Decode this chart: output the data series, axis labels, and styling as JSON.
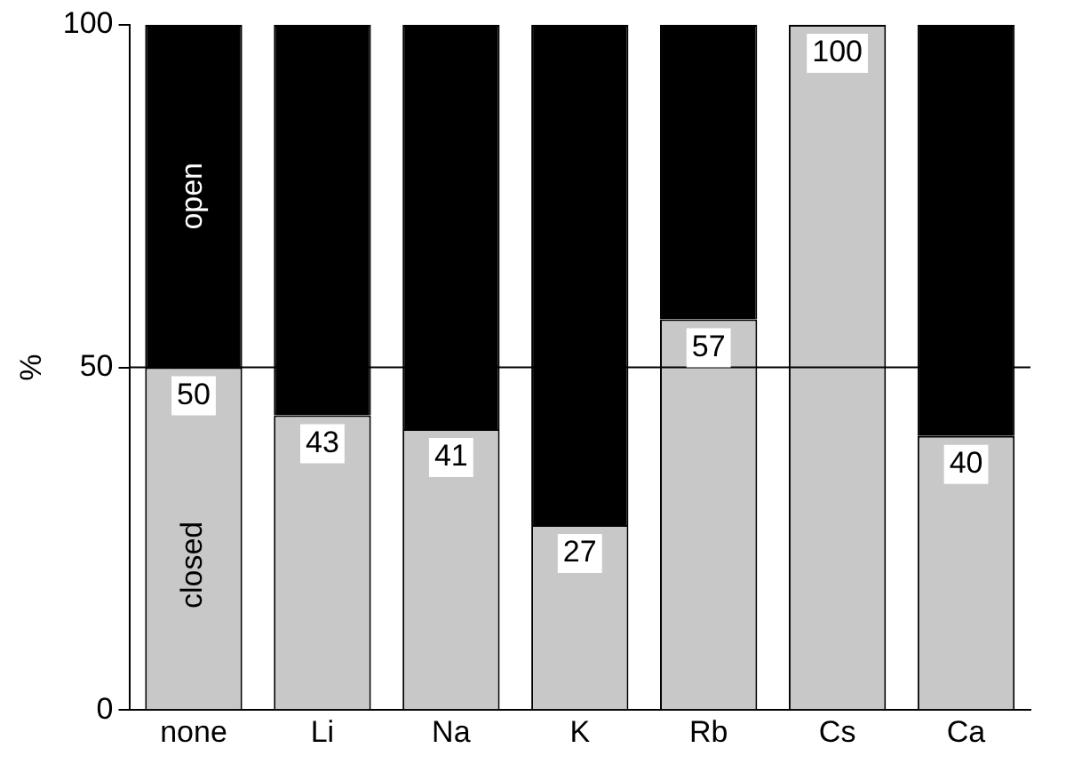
{
  "chart_data": {
    "type": "bar",
    "ylabel": "%",
    "categories": [
      "none",
      "Li",
      "Na",
      "K",
      "Rb",
      "Cs",
      "Ca"
    ],
    "stacked": true,
    "ylim": [
      0,
      100
    ],
    "yticks": [
      0,
      50,
      100
    ],
    "grid": false,
    "legend": false,
    "ref_lines": [
      {
        "axis": "y",
        "value": 50,
        "color": "#000000"
      }
    ],
    "series": [
      {
        "name": "closed",
        "color": "#c8c8c8",
        "values": [
          50,
          43,
          41,
          27,
          57,
          100,
          40
        ],
        "value_labels": [
          "50",
          "43",
          "41",
          "27",
          "57",
          "100",
          "40"
        ]
      },
      {
        "name": "open",
        "color": "#000000",
        "values": [
          50,
          57,
          59,
          73,
          43,
          0,
          60
        ]
      }
    ]
  }
}
